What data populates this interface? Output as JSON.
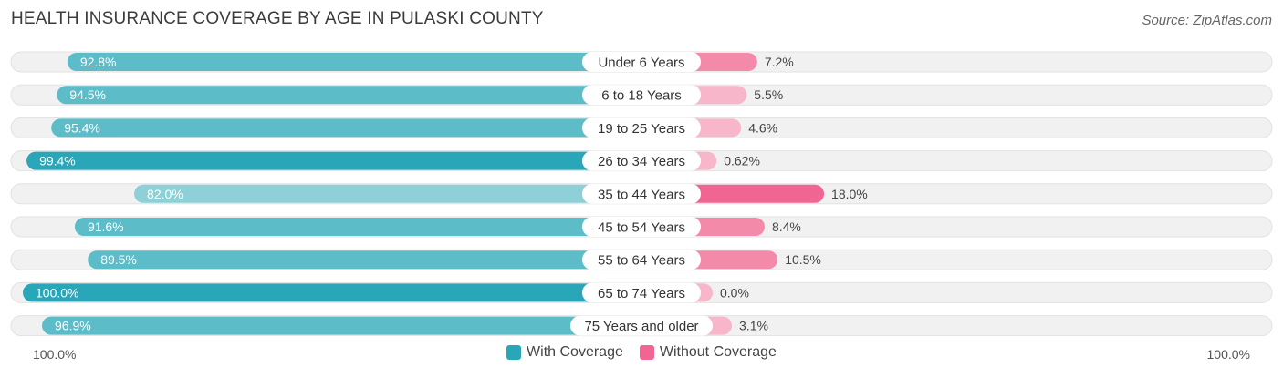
{
  "header": {
    "title": "HEALTH INSURANCE COVERAGE BY AGE IN PULASKI COUNTY",
    "source": "Source: ZipAtlas.com"
  },
  "axis": {
    "left_label": "100.0%",
    "right_label": "100.0%"
  },
  "legend": {
    "with_label": "With Coverage",
    "without_label": "Without Coverage"
  },
  "colors": {
    "with_strong": "#2aa6b9",
    "with_light": "#8ed0d8",
    "without_strong": "#f06591",
    "without_light": "#f7b6ca",
    "track": "#f1f1f1"
  },
  "chart_data": {
    "type": "bar",
    "title": "HEALTH INSURANCE COVERAGE BY AGE IN PULASKI COUNTY",
    "orientation": "horizontal-diverging",
    "categories": [
      "Under 6 Years",
      "6 to 18 Years",
      "19 to 25 Years",
      "26 to 34 Years",
      "35 to 44 Years",
      "45 to 54 Years",
      "55 to 64 Years",
      "65 to 74 Years",
      "75 Years and older"
    ],
    "series": [
      {
        "name": "With Coverage",
        "values": [
          92.8,
          94.5,
          95.4,
          99.4,
          82.0,
          91.6,
          89.5,
          100.0,
          96.9
        ],
        "labels": [
          "92.8%",
          "94.5%",
          "95.4%",
          "99.4%",
          "82.0%",
          "91.6%",
          "89.5%",
          "100.0%",
          "96.9%"
        ]
      },
      {
        "name": "Without Coverage",
        "values": [
          7.2,
          5.5,
          4.6,
          0.62,
          18.0,
          8.4,
          10.5,
          0.0,
          3.1
        ],
        "labels": [
          "7.2%",
          "5.5%",
          "4.6%",
          "0.62%",
          "18.0%",
          "8.4%",
          "10.5%",
          "0.0%",
          "3.1%"
        ]
      }
    ],
    "xlim": [
      0,
      100
    ],
    "legend_position": "bottom-center"
  }
}
